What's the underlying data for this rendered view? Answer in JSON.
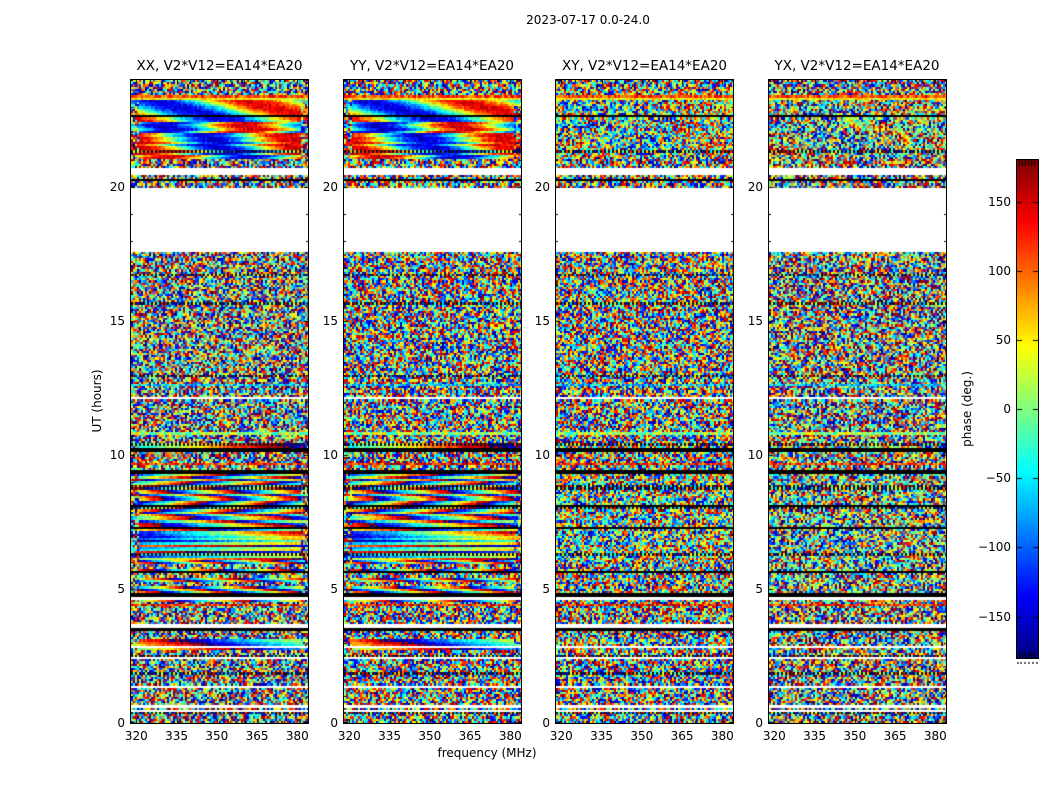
{
  "figure": {
    "title": "2023-07-17 0.0-24.0",
    "background": "#ffffff"
  },
  "axes": {
    "xlabel": "frequency (MHz)",
    "ylabel": "UT (hours)",
    "xtick_labels": [
      "320",
      "335",
      "350",
      "365",
      "380"
    ],
    "ytick_labels": [
      "0",
      "5",
      "10",
      "15",
      "20"
    ]
  },
  "panels": [
    {
      "pol": "XX",
      "title": "XX, V2*V12=EA14*EA20"
    },
    {
      "pol": "YY",
      "title": "YY, V2*V12=EA14*EA20"
    },
    {
      "pol": "XY",
      "title": "XY, V2*V12=EA14*EA20"
    },
    {
      "pol": "YX",
      "title": "YX, V2*V12=EA14*EA20"
    }
  ],
  "colorbar": {
    "label": "phase (deg.)",
    "tick_labels": [
      "150",
      "100",
      "50",
      "0",
      "−50",
      "−100",
      "−150"
    ]
  },
  "chart_data": {
    "type": "heatmap",
    "title": "2023-07-17 0.0-24.0",
    "subtitle_meaning": "date and UT time range of the observation",
    "xlabel": "frequency (MHz)",
    "ylabel": "UT (hours)",
    "x_range_mhz": [
      318,
      384
    ],
    "xticks_mhz": [
      320,
      335,
      350,
      365,
      380
    ],
    "xticks_minor_step_mhz": 5,
    "y_range_hours": [
      0,
      24
    ],
    "yticks_hours": [
      0,
      5,
      10,
      15,
      20
    ],
    "yticks_minor_step_hours": 1,
    "value_label": "phase (deg.)",
    "value_range_deg": [
      -180,
      180
    ],
    "colorbar_ticks_deg": [
      150,
      100,
      50,
      0,
      -50,
      -100,
      -150
    ],
    "colormap": "jet",
    "grid": false,
    "legend": "none",
    "panels": [
      {
        "pol": "XX",
        "baseline": "V2*V12=EA14*EA20",
        "hand": "parallel",
        "character": "coherent phase: smooth diagonal phase ramps UT 6-9.4, sinusoidal wavy bands UT 21-23.2, noise elsewhere"
      },
      {
        "pol": "YY",
        "baseline": "V2*V12=EA14*EA20",
        "hand": "parallel",
        "character": "same structure as XX with independent noise realization"
      },
      {
        "pol": "XY",
        "baseline": "V2*V12=EA14*EA20",
        "hand": "cross",
        "character": "mostly random phase noise; faint trace of XX/YY structure UT 6-9.4"
      },
      {
        "pol": "YX",
        "baseline": "V2*V12=EA14*EA20",
        "hand": "cross",
        "character": "mostly random phase noise; faint trace of XX/YY structure UT 6-9.4"
      }
    ],
    "blank_time_ranges_hours": [
      [
        0.55,
        0.62
      ],
      [
        1.35,
        1.42
      ],
      [
        2.35,
        2.45
      ],
      [
        3.55,
        3.72
      ],
      [
        17.55,
        19.95
      ],
      [
        20.45,
        20.72
      ]
    ],
    "time_segments": [
      {
        "t": [
          0.0,
          0.55
        ],
        "pattern": "noise"
      },
      {
        "t": [
          0.55,
          0.62
        ],
        "pattern": "blank"
      },
      {
        "t": [
          0.62,
          1.35
        ],
        "pattern": "noise"
      },
      {
        "t": [
          1.35,
          1.42
        ],
        "pattern": "blank"
      },
      {
        "t": [
          1.42,
          2.35
        ],
        "pattern": "noise"
      },
      {
        "t": [
          2.35,
          2.45
        ],
        "pattern": "blank"
      },
      {
        "t": [
          2.45,
          2.7
        ],
        "pattern": "noise"
      },
      {
        "t": [
          2.7,
          3.15
        ],
        "pattern": "phase-ramp-slow"
      },
      {
        "t": [
          3.15,
          3.55
        ],
        "pattern": "noise"
      },
      {
        "t": [
          3.55,
          3.72
        ],
        "pattern": "blank"
      },
      {
        "t": [
          3.72,
          4.55
        ],
        "pattern": "noise"
      },
      {
        "t": [
          4.55,
          6.05
        ],
        "pattern": "phase-ramp-alternating"
      },
      {
        "t": [
          6.05,
          9.4
        ],
        "pattern": "phase-ramp-diagonal"
      },
      {
        "t": [
          9.4,
          10.15
        ],
        "pattern": "noise"
      },
      {
        "t": [
          10.15,
          10.45
        ],
        "pattern": "phase-ramp-thin"
      },
      {
        "t": [
          10.45,
          17.55
        ],
        "pattern": "noise"
      },
      {
        "t": [
          17.55,
          19.95
        ],
        "pattern": "blank"
      },
      {
        "t": [
          19.95,
          20.45
        ],
        "pattern": "noise"
      },
      {
        "t": [
          20.45,
          20.72
        ],
        "pattern": "blank"
      },
      {
        "t": [
          20.72,
          21.05
        ],
        "pattern": "noise"
      },
      {
        "t": [
          21.05,
          22.45
        ],
        "pattern": "sinusoid-drift"
      },
      {
        "t": [
          22.45,
          23.25
        ],
        "pattern": "sinusoid-drift-2"
      },
      {
        "t": [
          23.25,
          23.45
        ],
        "pattern": "colored-lines"
      },
      {
        "t": [
          23.45,
          24.0
        ],
        "pattern": "noise"
      }
    ]
  }
}
